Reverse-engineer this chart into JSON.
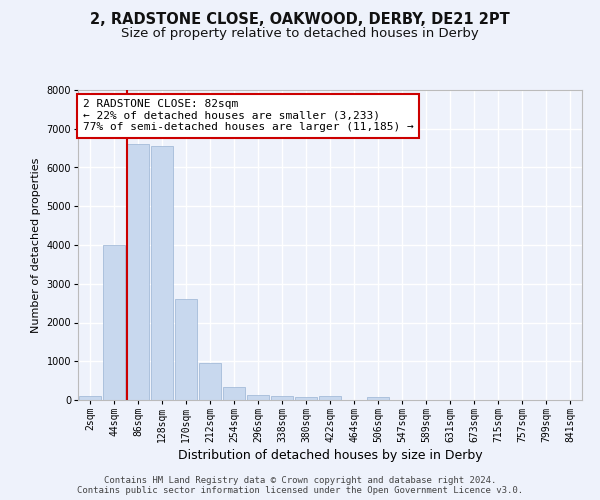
{
  "title1": "2, RADSTONE CLOSE, OAKWOOD, DERBY, DE21 2PT",
  "title2": "Size of property relative to detached houses in Derby",
  "xlabel": "Distribution of detached houses by size in Derby",
  "ylabel": "Number of detached properties",
  "bin_labels": [
    "2sqm",
    "44sqm",
    "86sqm",
    "128sqm",
    "170sqm",
    "212sqm",
    "254sqm",
    "296sqm",
    "338sqm",
    "380sqm",
    "422sqm",
    "464sqm",
    "506sqm",
    "547sqm",
    "589sqm",
    "631sqm",
    "673sqm",
    "715sqm",
    "757sqm",
    "799sqm",
    "841sqm"
  ],
  "bar_heights": [
    100,
    4000,
    6600,
    6550,
    2600,
    950,
    330,
    130,
    100,
    70,
    100,
    0,
    70,
    0,
    0,
    0,
    0,
    0,
    0,
    0,
    0
  ],
  "bar_color": "#c8d8ee",
  "bar_edge_color": "#9ab4d4",
  "vline_index": 2,
  "vline_color": "#cc0000",
  "annotation_line1": "2 RADSTONE CLOSE: 82sqm",
  "annotation_line2": "← 22% of detached houses are smaller (3,233)",
  "annotation_line3": "77% of semi-detached houses are larger (11,185) →",
  "annotation_box_color": "white",
  "annotation_box_edge": "#cc0000",
  "ylim": [
    0,
    8000
  ],
  "yticks": [
    0,
    1000,
    2000,
    3000,
    4000,
    5000,
    6000,
    7000,
    8000
  ],
  "footer1": "Contains HM Land Registry data © Crown copyright and database right 2024.",
  "footer2": "Contains public sector information licensed under the Open Government Licence v3.0.",
  "bg_color": "#eef2fb",
  "grid_color": "#ffffff",
  "title1_fontsize": 10.5,
  "title2_fontsize": 9.5,
  "xlabel_fontsize": 9,
  "ylabel_fontsize": 8,
  "tick_fontsize": 7,
  "annotation_fontsize": 8,
  "footer_fontsize": 6.5
}
